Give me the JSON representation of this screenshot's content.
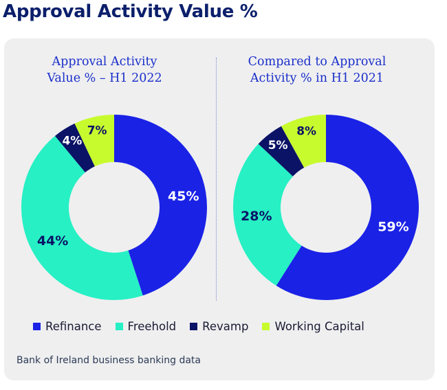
{
  "page": {
    "title": "Approval Activity Value %"
  },
  "colors": {
    "Refinance": "#1a22e6",
    "Freehold": "#26f0c4",
    "Revamp": "#0b1366",
    "Working Capital": "#c8fb2e"
  },
  "chart_data": [
    {
      "type": "pie",
      "title": "Approval Activity Value % – H1 2022",
      "title_lines": [
        "Approval Activity",
        "Value % – H1 2022"
      ],
      "slices": [
        {
          "name": "Refinance",
          "value": 45,
          "label": "45%"
        },
        {
          "name": "Freehold",
          "value": 44,
          "label": "44%"
        },
        {
          "name": "Revamp",
          "value": 4,
          "label": "4%"
        },
        {
          "name": "Working Capital",
          "value": 7,
          "label": "7%"
        }
      ]
    },
    {
      "type": "pie",
      "title": "Compared to Approval Activity % in H1 2021",
      "title_lines": [
        "Compared to Approval",
        "Activity % in H1 2021"
      ],
      "slices": [
        {
          "name": "Refinance",
          "value": 59,
          "label": "59%"
        },
        {
          "name": "Freehold",
          "value": 28,
          "label": "28%"
        },
        {
          "name": "Revamp",
          "value": 5,
          "label": "5%"
        },
        {
          "name": "Working Capital",
          "value": 8,
          "label": "8%"
        }
      ]
    }
  ],
  "legend": {
    "placement": "bottom",
    "items": [
      "Refinance",
      "Freehold",
      "Revamp",
      "Working Capital"
    ]
  },
  "source": "Bank of Ireland business banking data"
}
